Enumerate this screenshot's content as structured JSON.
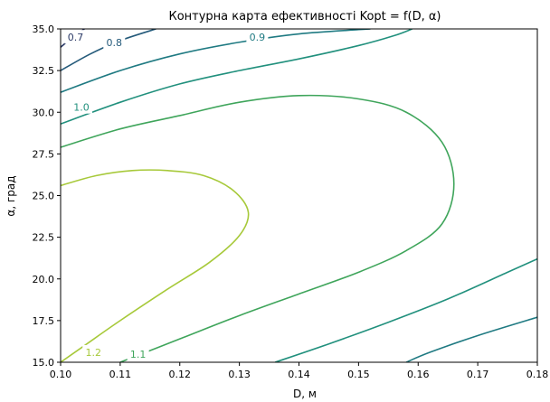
{
  "chart_data": {
    "type": "contour",
    "title": "Контурна карта ефективності Kopt = f(D, α)",
    "xlabel": "D, м",
    "ylabel": "α, град",
    "xlim": [
      0.1,
      0.18
    ],
    "ylim": [
      15.0,
      35.0
    ],
    "x_ticks": [
      "0.10",
      "0.11",
      "0.12",
      "0.13",
      "0.14",
      "0.15",
      "0.16",
      "0.17",
      "0.18"
    ],
    "y_ticks": [
      "15.0",
      "17.5",
      "20.0",
      "22.5",
      "25.0",
      "27.5",
      "30.0",
      "32.5",
      "35.0"
    ],
    "grid": false,
    "levels": [
      {
        "level": 0.7,
        "label": "0.7",
        "color": "#2b3a67",
        "curves": [
          [
            [
              0.1,
              33.9
            ],
            [
              0.102,
              34.5
            ],
            [
              0.104,
              35.0
            ]
          ]
        ],
        "label_pos": [
          0.1025,
          34.5
        ]
      },
      {
        "level": 0.8,
        "label": "0.8",
        "color": "#245a7a",
        "curves": [
          [
            [
              0.1,
              32.5
            ],
            [
              0.105,
              33.5
            ],
            [
              0.11,
              34.3
            ],
            [
              0.116,
              35.0
            ]
          ]
        ],
        "label_pos": [
          0.109,
          34.2
        ]
      },
      {
        "level": 0.9,
        "label": "0.9",
        "color": "#1f7a82",
        "curves": [
          [
            [
              0.1,
              31.2
            ],
            [
              0.11,
              32.5
            ],
            [
              0.12,
              33.5
            ],
            [
              0.13,
              34.2
            ],
            [
              0.14,
              34.7
            ],
            [
              0.152,
              35.0
            ]
          ],
          [
            [
              0.158,
              15.0
            ],
            [
              0.162,
              15.6
            ],
            [
              0.17,
              16.6
            ],
            [
              0.18,
              17.7
            ]
          ]
        ],
        "label_pos": [
          0.133,
          34.5
        ]
      },
      {
        "level": 1.0,
        "label": "1.0",
        "color": "#21907d",
        "curves": [
          [
            [
              0.1,
              29.3
            ],
            [
              0.11,
              30.6
            ],
            [
              0.12,
              31.7
            ],
            [
              0.13,
              32.5
            ],
            [
              0.14,
              33.2
            ],
            [
              0.15,
              34.0
            ],
            [
              0.156,
              34.6
            ],
            [
              0.159,
              35.0
            ]
          ],
          [
            [
              0.136,
              15.0
            ],
            [
              0.145,
              16.1
            ],
            [
              0.155,
              17.4
            ],
            [
              0.165,
              18.8
            ],
            [
              0.175,
              20.4
            ],
            [
              0.18,
              21.2
            ]
          ]
        ],
        "label_pos": [
          0.1035,
          30.3
        ]
      },
      {
        "level": 1.1,
        "label": "1.1",
        "color": "#3fa55b",
        "curves": [
          [
            [
              0.1,
              27.9
            ],
            [
              0.11,
              29.0
            ],
            [
              0.12,
              29.8
            ],
            [
              0.13,
              30.6
            ],
            [
              0.14,
              31.0
            ],
            [
              0.15,
              30.8
            ],
            [
              0.158,
              30.0
            ],
            [
              0.164,
              28.2
            ],
            [
              0.166,
              25.7
            ],
            [
              0.164,
              23.3
            ],
            [
              0.158,
              21.7
            ],
            [
              0.15,
              20.4
            ],
            [
              0.14,
              19.1
            ],
            [
              0.13,
              17.8
            ],
            [
              0.12,
              16.4
            ],
            [
              0.11,
              15.0
            ]
          ]
        ],
        "label_pos": [
          0.113,
          15.5
        ]
      },
      {
        "level": 1.2,
        "label": "1.2",
        "color": "#a7c93a",
        "curves": [
          [
            [
              0.1,
              25.6
            ],
            [
              0.106,
              26.2
            ],
            [
              0.112,
              26.5
            ],
            [
              0.118,
              26.5
            ],
            [
              0.124,
              26.2
            ],
            [
              0.129,
              25.3
            ],
            [
              0.1315,
              24.0
            ],
            [
              0.13,
              22.6
            ],
            [
              0.125,
              21.0
            ],
            [
              0.118,
              19.4
            ],
            [
              0.11,
              17.5
            ],
            [
              0.104,
              16.0
            ],
            [
              0.1,
              15.0
            ]
          ]
        ],
        "label_pos": [
          0.1055,
          15.6
        ]
      }
    ]
  }
}
